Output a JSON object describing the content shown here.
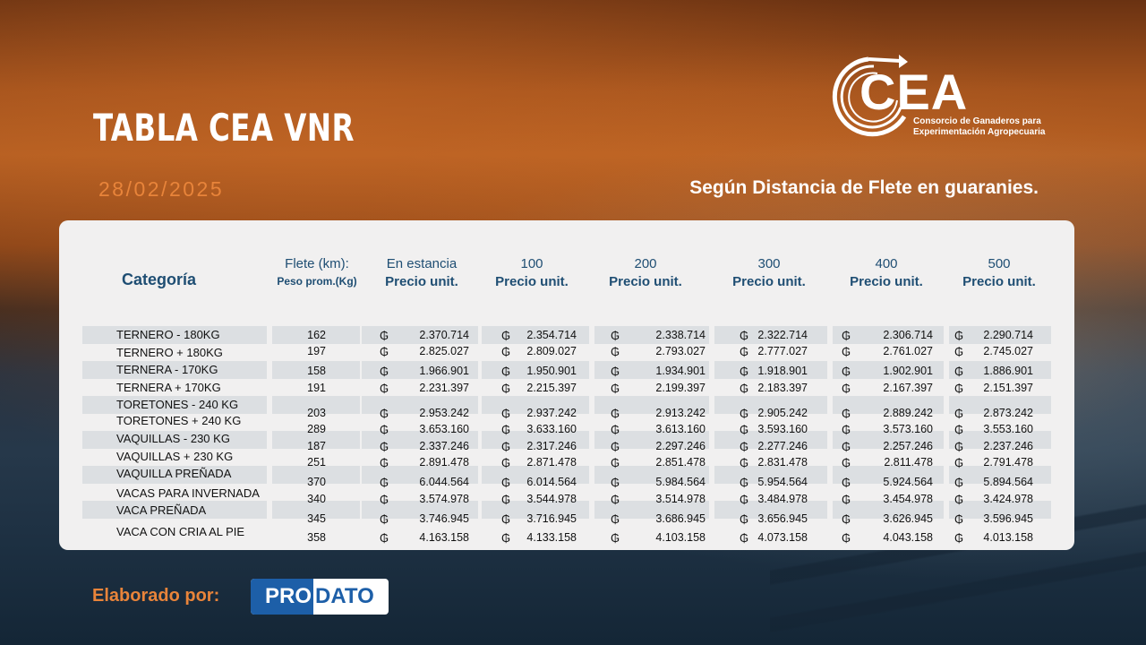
{
  "header": {
    "title": "TABLA CEA VNR",
    "date": "28/02/2025",
    "subtitle": "Según Distancia de Flete en guaranies."
  },
  "logo": {
    "word": "CEA",
    "line1": "Consorcio de Ganaderos para",
    "line2": "Experimentación Agropecuaria"
  },
  "table": {
    "category_header": "Categoría",
    "flete_header": "Flete (km):",
    "weight_header": "Peso prom.(Kg)",
    "price_label": "Precio unit.",
    "columns": [
      "En estancia",
      "100",
      "200",
      "300",
      "400",
      "500"
    ],
    "currency_symbol": "₲",
    "rows": [
      {
        "category": "TERNERO - 180KG",
        "weight": "162",
        "prices": [
          "2.370.714",
          "2.354.714",
          "2.338.714",
          "2.322.714",
          "2.306.714",
          "2.290.714"
        ]
      },
      {
        "category": "TERNERO + 180KG",
        "weight": "197",
        "prices": [
          "2.825.027",
          "2.809.027",
          "2.793.027",
          "2.777.027",
          "2.761.027",
          "2.745.027"
        ]
      },
      {
        "category": "TERNERA - 170KG",
        "weight": "158",
        "prices": [
          "1.966.901",
          "1.950.901",
          "1.934.901",
          "1.918.901",
          "1.902.901",
          "1.886.901"
        ]
      },
      {
        "category": "TERNERA + 170KG",
        "weight": "191",
        "prices": [
          "2.231.397",
          "2.215.397",
          "2.199.397",
          "2.183.397",
          "2.167.397",
          "2.151.397"
        ]
      },
      {
        "category": "TORETONES - 240 KG",
        "weight": "203",
        "prices": [
          "2.953.242",
          "2.937.242",
          "2.913.242",
          "2.905.242",
          "2.889.242",
          "2.873.242"
        ]
      },
      {
        "category": "TORETONES + 240 KG",
        "weight": "289",
        "prices": [
          "3.653.160",
          "3.633.160",
          "3.613.160",
          "3.593.160",
          "3.573.160",
          "3.553.160"
        ]
      },
      {
        "category": "VAQUILLAS - 230 KG",
        "weight": "187",
        "prices": [
          "2.337.246",
          "2.317.246",
          "2.297.246",
          "2.277.246",
          "2.257.246",
          "2.237.246"
        ]
      },
      {
        "category": "VAQUILLAS + 230 KG",
        "weight": "251",
        "prices": [
          "2.891.478",
          "2.871.478",
          "2.851.478",
          "2.831.478",
          "2.811.478",
          "2.791.478"
        ]
      },
      {
        "category": "VAQUILLA PREÑADA",
        "weight": "370",
        "prices": [
          "6.044.564",
          "6.014.564",
          "5.984.564",
          "5.954.564",
          "5.924.564",
          "5.894.564"
        ]
      },
      {
        "category": "VACAS PARA INVERNADA",
        "weight": "340",
        "prices": [
          "3.574.978",
          "3.544.978",
          "3.514.978",
          "3.484.978",
          "3.454.978",
          "3.424.978"
        ]
      },
      {
        "category": "VACA PREÑADA",
        "weight": "345",
        "prices": [
          "3.746.945",
          "3.716.945",
          "3.686.945",
          "3.656.945",
          "3.626.945",
          "3.596.945"
        ]
      },
      {
        "category": "VACA CON CRIA AL PIE",
        "weight": "358",
        "prices": [
          "4.163.158",
          "4.133.158",
          "4.103.158",
          "4.073.158",
          "4.043.158",
          "4.013.158"
        ]
      }
    ]
  },
  "footer": {
    "label": "Elaborado por:",
    "badge_left": "PRO",
    "badge_right": "DATO"
  }
}
